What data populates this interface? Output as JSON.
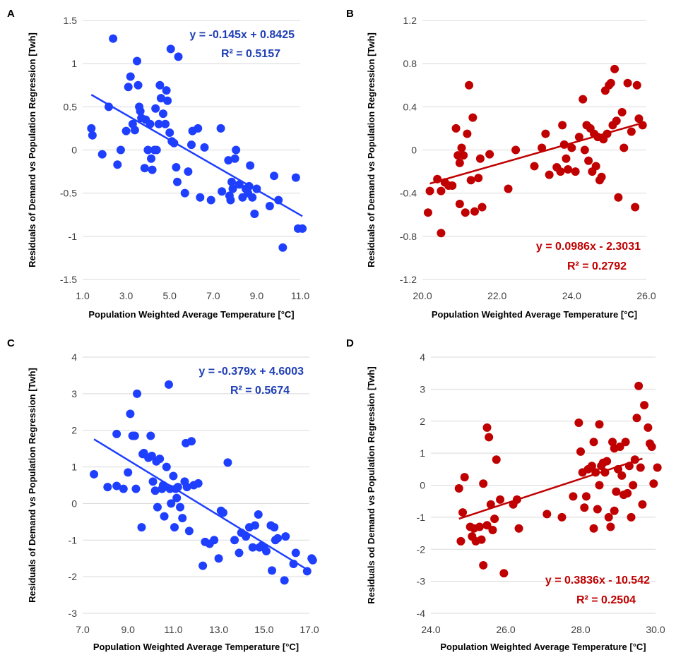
{
  "chart_data": [
    {
      "panel": "A",
      "type": "scatter",
      "color": "#1f3fff",
      "annotation_color": "#1f3fb5",
      "xlabel": "Population Weighted Average Temperature [°C]",
      "ylabel": "Residuals of Demand vs Population Regression [Twh]",
      "xlim": [
        1.0,
        11.0
      ],
      "ylim": [
        -1.5,
        1.5
      ],
      "x_ticks": [
        1.0,
        3.0,
        5.0,
        7.0,
        9.0,
        11.0
      ],
      "x_tick_labels": [
        "1.0",
        "3.0",
        "5.0",
        "7.0",
        "9.0",
        "11.0"
      ],
      "y_ticks": [
        1.5,
        1,
        0.5,
        0,
        -0.5,
        -1,
        -1.5
      ],
      "y_tick_labels": [
        "1.5",
        "1",
        "0.5",
        "0",
        "-0.5",
        "-1",
        "-1.5"
      ],
      "equation": "y = -0.145x + 0.8425",
      "r2": "R² = 0.5157",
      "trendline": {
        "slope": -0.145,
        "intercept": 0.8425,
        "x_range": [
          1.4,
          11.1
        ]
      },
      "annotation_position": "top-right",
      "points": [
        [
          1.4,
          0.25
        ],
        [
          1.45,
          0.17
        ],
        [
          1.9,
          -0.05
        ],
        [
          2.2,
          0.5
        ],
        [
          2.4,
          1.29
        ],
        [
          2.6,
          -0.17
        ],
        [
          2.75,
          0.0
        ],
        [
          3.0,
          0.22
        ],
        [
          3.1,
          0.73
        ],
        [
          3.2,
          0.85
        ],
        [
          3.3,
          0.3
        ],
        [
          3.4,
          0.23
        ],
        [
          3.5,
          1.03
        ],
        [
          3.55,
          0.75
        ],
        [
          3.6,
          0.5
        ],
        [
          3.65,
          0.45
        ],
        [
          3.7,
          0.37
        ],
        [
          3.85,
          -0.21
        ],
        [
          3.9,
          0.35
        ],
        [
          4.0,
          0.0
        ],
        [
          4.1,
          0.3
        ],
        [
          4.15,
          -0.1
        ],
        [
          4.2,
          -0.23
        ],
        [
          4.3,
          0.0
        ],
        [
          4.35,
          0.48
        ],
        [
          4.4,
          0.0
        ],
        [
          4.5,
          0.3
        ],
        [
          4.55,
          0.75
        ],
        [
          4.6,
          0.6
        ],
        [
          4.7,
          0.42
        ],
        [
          4.8,
          0.3
        ],
        [
          4.85,
          0.69
        ],
        [
          4.9,
          0.57
        ],
        [
          5.0,
          0.2
        ],
        [
          5.05,
          1.17
        ],
        [
          5.1,
          0.1
        ],
        [
          5.2,
          0.08
        ],
        [
          5.3,
          -0.2
        ],
        [
          5.35,
          -0.37
        ],
        [
          5.4,
          1.08
        ],
        [
          5.7,
          -0.5
        ],
        [
          5.85,
          -0.25
        ],
        [
          6.0,
          0.06
        ],
        [
          6.05,
          0.22
        ],
        [
          6.3,
          0.25
        ],
        [
          6.4,
          -0.55
        ],
        [
          6.6,
          0.03
        ],
        [
          6.9,
          -0.58
        ],
        [
          7.35,
          0.25
        ],
        [
          7.4,
          -0.48
        ],
        [
          7.7,
          -0.12
        ],
        [
          7.75,
          -0.53
        ],
        [
          7.8,
          -0.58
        ],
        [
          7.85,
          -0.37
        ],
        [
          7.9,
          -0.45
        ],
        [
          8.0,
          -0.1
        ],
        [
          8.05,
          0.0
        ],
        [
          8.2,
          -0.4
        ],
        [
          8.35,
          -0.55
        ],
        [
          8.5,
          -0.45
        ],
        [
          8.6,
          -0.5
        ],
        [
          8.65,
          -0.42
        ],
        [
          8.7,
          -0.18
        ],
        [
          8.8,
          -0.55
        ],
        [
          8.9,
          -0.74
        ],
        [
          9.0,
          -0.45
        ],
        [
          9.6,
          -0.65
        ],
        [
          9.8,
          -0.3
        ],
        [
          10.0,
          -0.58
        ],
        [
          10.2,
          -1.13
        ],
        [
          10.8,
          -0.32
        ],
        [
          10.9,
          -0.91
        ],
        [
          11.1,
          -0.91
        ]
      ]
    },
    {
      "panel": "B",
      "type": "scatter",
      "color": "#c00000",
      "annotation_color": "#c00000",
      "xlabel": "Population Weighted Average Temperature [°C]",
      "ylabel": "Residuals of Demand vs Population Regression [Twh]",
      "xlim": [
        20.0,
        26.0
      ],
      "ylim": [
        -1.2,
        1.2
      ],
      "x_ticks": [
        20.0,
        22.0,
        24.0,
        26.0
      ],
      "x_tick_labels": [
        "20.0",
        "22.0",
        "24.0",
        "26.0"
      ],
      "y_ticks": [
        1.2,
        0.8,
        0.4,
        0,
        -0.4,
        -0.8,
        -1.2
      ],
      "y_tick_labels": [
        "1.2",
        "0.8",
        "0.4",
        "0",
        "-0.4",
        "-0.8",
        "-1.2"
      ],
      "equation": "y = 0.0986x - 2.3031",
      "r2": "R² = 0.2792",
      "trendline": {
        "slope": 0.0986,
        "intercept": -2.3031,
        "x_range": [
          20.2,
          25.8
        ]
      },
      "annotation_position": "bottom-right",
      "points": [
        [
          20.15,
          -0.58
        ],
        [
          20.2,
          -0.38
        ],
        [
          20.4,
          -0.27
        ],
        [
          20.5,
          -0.38
        ],
        [
          20.5,
          -0.77
        ],
        [
          20.6,
          -0.3
        ],
        [
          20.7,
          -0.33
        ],
        [
          20.8,
          -0.33
        ],
        [
          20.9,
          0.2
        ],
        [
          20.95,
          -0.05
        ],
        [
          21.0,
          -0.5
        ],
        [
          21.0,
          -0.12
        ],
        [
          21.05,
          0.02
        ],
        [
          21.1,
          -0.05
        ],
        [
          21.15,
          -0.58
        ],
        [
          21.2,
          0.15
        ],
        [
          21.25,
          0.6
        ],
        [
          21.3,
          -0.28
        ],
        [
          21.35,
          0.3
        ],
        [
          21.4,
          -0.57
        ],
        [
          21.5,
          -0.26
        ],
        [
          21.55,
          -0.08
        ],
        [
          21.6,
          -0.53
        ],
        [
          21.8,
          -0.04
        ],
        [
          22.3,
          -0.36
        ],
        [
          22.5,
          0.0
        ],
        [
          23.0,
          -0.15
        ],
        [
          23.2,
          0.02
        ],
        [
          23.3,
          0.15
        ],
        [
          23.4,
          -0.23
        ],
        [
          23.6,
          -0.16
        ],
        [
          23.7,
          -0.2
        ],
        [
          23.75,
          0.23
        ],
        [
          23.8,
          0.05
        ],
        [
          23.85,
          -0.08
        ],
        [
          23.9,
          -0.18
        ],
        [
          24.0,
          0.02
        ],
        [
          24.1,
          -0.2
        ],
        [
          24.2,
          0.12
        ],
        [
          24.3,
          0.47
        ],
        [
          24.35,
          0.0
        ],
        [
          24.4,
          0.23
        ],
        [
          24.45,
          -0.1
        ],
        [
          24.5,
          0.2
        ],
        [
          24.55,
          -0.2
        ],
        [
          24.6,
          0.15
        ],
        [
          24.65,
          -0.15
        ],
        [
          24.7,
          0.12
        ],
        [
          24.75,
          -0.28
        ],
        [
          24.8,
          -0.25
        ],
        [
          24.85,
          0.1
        ],
        [
          24.9,
          0.55
        ],
        [
          24.95,
          0.15
        ],
        [
          25.0,
          0.6
        ],
        [
          25.05,
          0.62
        ],
        [
          25.1,
          0.23
        ],
        [
          25.15,
          0.75
        ],
        [
          25.2,
          0.27
        ],
        [
          25.25,
          -0.44
        ],
        [
          25.35,
          0.35
        ],
        [
          25.4,
          0.02
        ],
        [
          25.5,
          0.62
        ],
        [
          25.6,
          0.17
        ],
        [
          25.7,
          -0.53
        ],
        [
          25.75,
          0.6
        ],
        [
          25.8,
          0.29
        ],
        [
          25.9,
          0.23
        ]
      ]
    },
    {
      "panel": "C",
      "type": "scatter",
      "color": "#1f3fff",
      "annotation_color": "#1f3fb5",
      "xlabel": "Population Weighted Average Temperature [°C]",
      "ylabel": "Residuals of Demand vs Population Regression [Twh]",
      "xlim": [
        7.0,
        17.0
      ],
      "ylim": [
        -3,
        4
      ],
      "x_ticks": [
        7.0,
        9.0,
        11.0,
        13.0,
        15.0,
        17.0
      ],
      "x_tick_labels": [
        "7.0",
        "9.0",
        "11.0",
        "13.0",
        "15.0",
        "17.0"
      ],
      "y_ticks": [
        4,
        3,
        2,
        1,
        0,
        -1,
        -2,
        -3
      ],
      "y_tick_labels": [
        "4",
        "3",
        "2",
        "1",
        "0",
        "-1",
        "-2",
        "-3"
      ],
      "equation": "y = -0.379x + 4.6003",
      "r2": "R² = 0.5674",
      "trendline": {
        "slope": -0.379,
        "intercept": 4.6003,
        "x_range": [
          7.5,
          17.0
        ]
      },
      "annotation_position": "top-right",
      "points": [
        [
          7.5,
          0.8
        ],
        [
          8.1,
          0.45
        ],
        [
          8.5,
          1.9
        ],
        [
          8.5,
          0.48
        ],
        [
          8.8,
          0.4
        ],
        [
          9.0,
          0.85
        ],
        [
          9.1,
          2.45
        ],
        [
          9.2,
          1.85
        ],
        [
          9.3,
          1.85
        ],
        [
          9.35,
          0.4
        ],
        [
          9.4,
          3.0
        ],
        [
          9.6,
          -0.65
        ],
        [
          9.65,
          1.35
        ],
        [
          9.7,
          1.38
        ],
        [
          9.9,
          1.25
        ],
        [
          10.0,
          1.85
        ],
        [
          10.05,
          1.3
        ],
        [
          10.1,
          0.6
        ],
        [
          10.2,
          0.35
        ],
        [
          10.25,
          1.15
        ],
        [
          10.3,
          -0.1
        ],
        [
          10.4,
          1.22
        ],
        [
          10.5,
          0.4
        ],
        [
          10.55,
          0.5
        ],
        [
          10.6,
          -0.35
        ],
        [
          10.7,
          1.0
        ],
        [
          10.8,
          3.25
        ],
        [
          10.85,
          0.4
        ],
        [
          10.9,
          0.0
        ],
        [
          11.0,
          0.75
        ],
        [
          11.05,
          -0.65
        ],
        [
          11.1,
          0.4
        ],
        [
          11.15,
          0.15
        ],
        [
          11.2,
          0.45
        ],
        [
          11.3,
          -0.1
        ],
        [
          11.4,
          -0.4
        ],
        [
          11.5,
          0.6
        ],
        [
          11.55,
          1.65
        ],
        [
          11.6,
          0.45
        ],
        [
          11.7,
          -0.75
        ],
        [
          11.8,
          1.7
        ],
        [
          11.9,
          0.5
        ],
        [
          12.1,
          0.55
        ],
        [
          12.3,
          -1.7
        ],
        [
          12.4,
          -1.05
        ],
        [
          12.6,
          -1.1
        ],
        [
          12.8,
          -1.0
        ],
        [
          13.0,
          -1.5
        ],
        [
          13.1,
          -0.2
        ],
        [
          13.2,
          -0.25
        ],
        [
          13.4,
          1.12
        ],
        [
          13.7,
          -1.0
        ],
        [
          13.9,
          -1.35
        ],
        [
          14.0,
          -0.8
        ],
        [
          14.2,
          -0.9
        ],
        [
          14.35,
          -0.65
        ],
        [
          14.5,
          -1.2
        ],
        [
          14.6,
          -0.6
        ],
        [
          14.75,
          -0.3
        ],
        [
          14.8,
          -1.2
        ],
        [
          14.9,
          -1.15
        ],
        [
          15.0,
          -1.2
        ],
        [
          15.1,
          -1.3
        ],
        [
          15.3,
          -0.6
        ],
        [
          15.35,
          -1.83
        ],
        [
          15.45,
          -0.65
        ],
        [
          15.5,
          -1.0
        ],
        [
          15.6,
          -0.95
        ],
        [
          15.9,
          -2.1
        ],
        [
          15.95,
          -0.9
        ],
        [
          16.3,
          -1.65
        ],
        [
          16.4,
          -1.35
        ],
        [
          16.9,
          -1.85
        ],
        [
          17.1,
          -1.5
        ],
        [
          17.15,
          -1.55
        ]
      ]
    },
    {
      "panel": "D",
      "type": "scatter",
      "color": "#c00000",
      "annotation_color": "#c00000",
      "xlabel": "Population Weighted Average Temperature [°C]",
      "ylabel": "Residuals od Demand vs Population Regression [Twh]",
      "xlim": [
        24.0,
        30.0
      ],
      "ylim": [
        -4,
        4
      ],
      "x_ticks": [
        24.0,
        26.0,
        28.0,
        30.0
      ],
      "x_tick_labels": [
        "24.0",
        "26.0",
        "28.0",
        "30.0"
      ],
      "y_ticks": [
        4,
        3,
        2,
        1,
        0,
        -1,
        -2,
        -3,
        -4
      ],
      "y_tick_labels": [
        "4",
        "3",
        "2",
        "1",
        "0",
        "-1",
        "-2",
        "-3",
        "-4"
      ],
      "equation": "y = 0.3836x - 10.542",
      "r2": "R² = 0.2504",
      "trendline": {
        "slope": 0.3836,
        "intercept": -10.542,
        "x_range": [
          24.75,
          29.65
        ]
      },
      "annotation_position": "bottom-right",
      "points": [
        [
          24.75,
          -0.1
        ],
        [
          24.8,
          -1.75
        ],
        [
          24.85,
          -0.85
        ],
        [
          24.9,
          0.25
        ],
        [
          25.05,
          -1.3
        ],
        [
          25.1,
          -1.6
        ],
        [
          25.15,
          -1.35
        ],
        [
          25.2,
          -1.75
        ],
        [
          25.3,
          -1.3
        ],
        [
          25.35,
          -1.7
        ],
        [
          25.4,
          0.05
        ],
        [
          25.4,
          -2.5
        ],
        [
          25.5,
          1.8
        ],
        [
          25.5,
          -1.25
        ],
        [
          25.55,
          1.5
        ],
        [
          25.6,
          -0.6
        ],
        [
          25.65,
          -1.4
        ],
        [
          25.7,
          -1.05
        ],
        [
          25.75,
          0.8
        ],
        [
          25.85,
          -0.45
        ],
        [
          25.95,
          -2.75
        ],
        [
          26.2,
          -0.6
        ],
        [
          26.3,
          -0.45
        ],
        [
          26.35,
          -1.35
        ],
        [
          27.1,
          -0.9
        ],
        [
          27.5,
          -1.0
        ],
        [
          27.8,
          -0.35
        ],
        [
          27.95,
          1.95
        ],
        [
          28.0,
          1.05
        ],
        [
          28.05,
          0.4
        ],
        [
          28.1,
          -0.7
        ],
        [
          28.2,
          0.5
        ],
        [
          28.3,
          0.6
        ],
        [
          28.35,
          -1.35
        ],
        [
          28.4,
          0.4
        ],
        [
          28.45,
          -0.75
        ],
        [
          28.5,
          0.0
        ],
        [
          28.5,
          1.9
        ],
        [
          28.55,
          0.6
        ],
        [
          28.6,
          0.7
        ],
        [
          28.7,
          0.75
        ],
        [
          28.75,
          -1.0
        ],
        [
          28.8,
          -1.3
        ],
        [
          28.85,
          1.35
        ],
        [
          28.9,
          -0.8
        ],
        [
          28.95,
          -0.2
        ],
        [
          29.0,
          0.5
        ],
        [
          29.05,
          1.2
        ],
        [
          29.1,
          0.3
        ],
        [
          29.15,
          -0.3
        ],
        [
          29.2,
          1.35
        ],
        [
          29.25,
          -0.25
        ],
        [
          29.3,
          0.6
        ],
        [
          29.35,
          -1.0
        ],
        [
          29.4,
          0.0
        ],
        [
          29.45,
          0.8
        ],
        [
          29.5,
          2.1
        ],
        [
          29.55,
          3.1
        ],
        [
          29.6,
          0.55
        ],
        [
          29.65,
          -0.6
        ],
        [
          29.7,
          2.5
        ],
        [
          29.8,
          1.8
        ],
        [
          29.85,
          1.3
        ],
        [
          29.9,
          1.2
        ],
        [
          29.95,
          0.05
        ],
        [
          30.05,
          0.55
        ],
        [
          28.9,
          1.15
        ],
        [
          28.35,
          1.35
        ],
        [
          28.15,
          -0.35
        ],
        [
          28.65,
          0.4
        ]
      ]
    }
  ]
}
